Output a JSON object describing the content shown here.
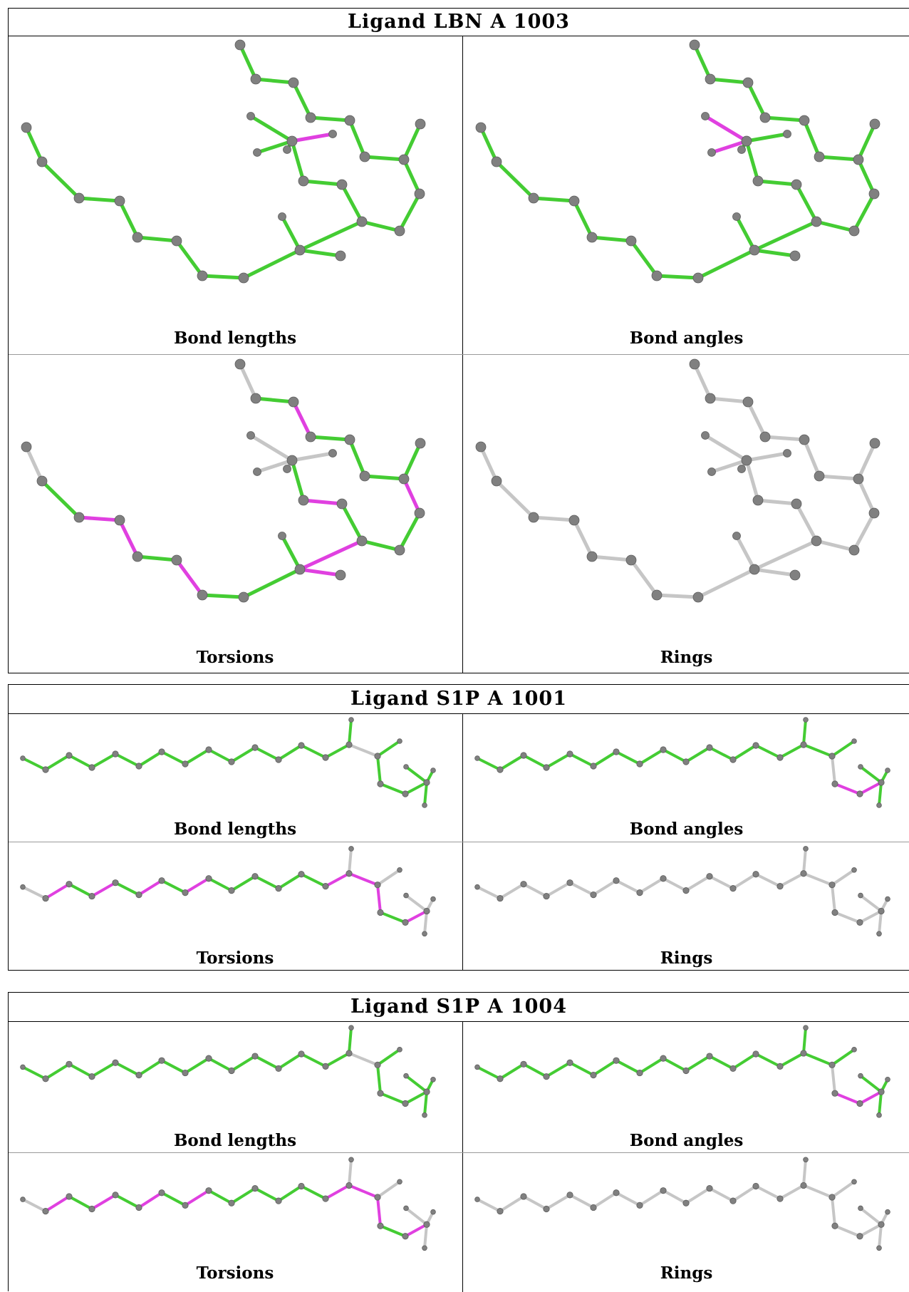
{
  "colors": {
    "ok": "#44cc33",
    "outlier": "#e040e0",
    "neutral": "#c6c6c6",
    "atom": "#808080"
  },
  "blocks": [
    {
      "title": "Ligand LBN A 1003",
      "panels": [
        {
          "label": "Bond lengths",
          "mode": "lengths"
        },
        {
          "label": "Bond angles",
          "mode": "angles"
        },
        {
          "label": "Torsions",
          "mode": "torsions"
        },
        {
          "label": "Rings",
          "mode": "rings"
        }
      ]
    },
    {
      "title": "Ligand S1P A 1001",
      "panels": [
        {
          "label": "Bond lengths",
          "mode": "lengths"
        },
        {
          "label": "Bond angles",
          "mode": "angles"
        },
        {
          "label": "Torsions",
          "mode": "torsions"
        },
        {
          "label": "Rings",
          "mode": "rings"
        }
      ]
    },
    {
      "title": "Ligand S1P A 1004",
      "panels": [
        {
          "label": "Bond lengths",
          "mode": "lengths"
        },
        {
          "label": "Bond angles",
          "mode": "angles"
        },
        {
          "label": "Torsions",
          "mode": "torsions"
        },
        {
          "label": "Rings",
          "mode": "rings"
        }
      ]
    }
  ]
}
